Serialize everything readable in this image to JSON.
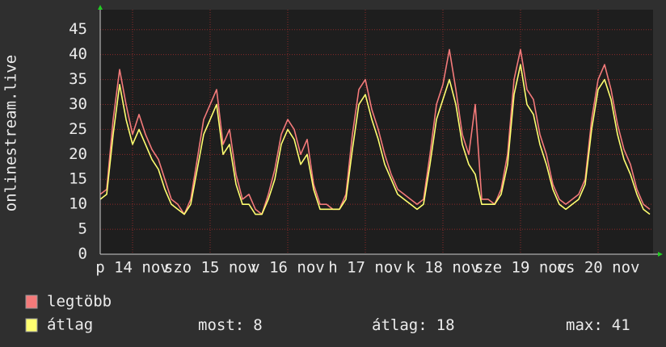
{
  "chart_data": {
    "type": "line",
    "y_label": "onlinestream.live",
    "categories": [
      null,
      null,
      null,
      null,
      null,
      "p 14 nov",
      null,
      null,
      null,
      null,
      null,
      null,
      null,
      null,
      null,
      null,
      null,
      "szo 15 nov",
      null,
      null,
      null,
      null,
      null,
      null,
      null,
      null,
      null,
      null,
      null,
      "v 16 nov",
      null,
      null,
      null,
      null,
      null,
      null,
      null,
      null,
      null,
      null,
      null,
      "h 17 nov",
      null,
      null,
      null,
      null,
      null,
      null,
      null,
      null,
      null,
      null,
      null,
      "k 18 nov",
      null,
      null,
      null,
      null,
      null,
      null,
      null,
      null,
      null,
      null,
      null,
      "sze 19 nov",
      null,
      null,
      null,
      null,
      null,
      null,
      null,
      null,
      null,
      null,
      null,
      "cs 20 nov",
      null,
      null,
      null,
      null,
      null,
      null,
      null,
      null
    ],
    "series": [
      {
        "name": "legtöbb",
        "color": "#f47a7a",
        "values": [
          12,
          13,
          27,
          37,
          30,
          24,
          28,
          24,
          21,
          19,
          15,
          11,
          10,
          8,
          11,
          19,
          27,
          30,
          33,
          22,
          25,
          16,
          11,
          12,
          9,
          8,
          12,
          17,
          24,
          27,
          25,
          20,
          23,
          14,
          10,
          10,
          9,
          9,
          12,
          24,
          33,
          35,
          29,
          25,
          20,
          16,
          13,
          12,
          11,
          10,
          11,
          20,
          30,
          34,
          41,
          33,
          24,
          20,
          30,
          11,
          11,
          10,
          13,
          20,
          35,
          41,
          33,
          31,
          24,
          20,
          14,
          11,
          10,
          11,
          12,
          15,
          27,
          35,
          38,
          33,
          26,
          21,
          18,
          13,
          10,
          9
        ]
      },
      {
        "name": "átlag",
        "color": "#ffff70",
        "values": [
          11,
          12,
          24,
          34,
          27,
          22,
          25,
          22,
          19,
          17,
          13,
          10,
          9,
          8,
          10,
          17,
          24,
          27,
          30,
          20,
          22,
          14,
          10,
          10,
          8,
          8,
          11,
          15,
          22,
          25,
          23,
          18,
          20,
          13,
          9,
          9,
          9,
          9,
          11,
          21,
          30,
          32,
          27,
          23,
          18,
          15,
          12,
          11,
          10,
          9,
          10,
          18,
          27,
          31,
          35,
          30,
          22,
          18,
          16,
          10,
          10,
          10,
          12,
          18,
          32,
          38,
          30,
          28,
          22,
          18,
          13,
          10,
          9,
          10,
          11,
          14,
          25,
          33,
          35,
          31,
          24,
          19,
          16,
          12,
          9,
          8
        ]
      }
    ],
    "stats": [
      {
        "label": "most:",
        "value": 8
      },
      {
        "label": "átlag:",
        "value": 18
      },
      {
        "label": "max:",
        "value": 41
      }
    ],
    "ylim": [
      0,
      49
    ],
    "yticks": [
      0,
      5,
      10,
      15,
      20,
      25,
      30,
      35,
      40,
      45
    ],
    "grid": true
  }
}
